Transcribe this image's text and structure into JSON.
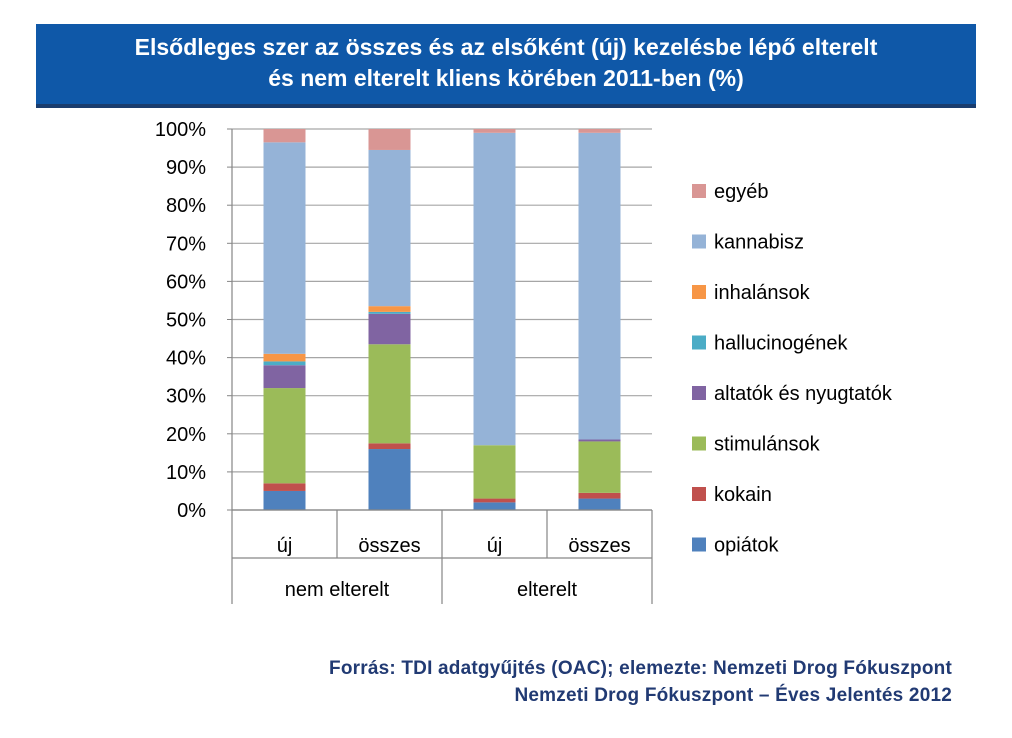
{
  "header": {
    "title_line1": "Elsődleges szer az összes és az elsőként (új) kezelésbe lépő elterelt",
    "title_line2": "és nem elterelt kliens körében 2011-ben (%)"
  },
  "footer": {
    "source_line1": "Forrás: TDI adatgyűjtés  (OAC); elemezte: Nemzeti Drog Fókuszpont",
    "source_line2": "Nemzeti Drog Fókuszpont – Éves Jelentés  2012"
  },
  "colors": {
    "title_band": "#0f58a8",
    "source_text": "#213a73"
  },
  "chart_data": {
    "type": "bar",
    "stacked": true,
    "percent": true,
    "title": "Elsődleges szer az összes és az elsőként (új) kezelésbe lépő elterelt és nem elterelt kliens körében 2011-ben (%)",
    "categories": [
      "új",
      "összes",
      "új",
      "összes"
    ],
    "groups": [
      {
        "label": "nem elterelt",
        "categories": [
          "új",
          "összes"
        ]
      },
      {
        "label": "elterelt",
        "categories": [
          "új",
          "összes"
        ]
      }
    ],
    "yticks": [
      "0%",
      "10%",
      "20%",
      "30%",
      "40%",
      "50%",
      "60%",
      "70%",
      "80%",
      "90%",
      "100%"
    ],
    "ylim": [
      0,
      100
    ],
    "grid": true,
    "legend_position": "right",
    "series": [
      {
        "name": "opiátok",
        "color": "#4f81bd",
        "values": [
          5,
          16,
          2,
          3
        ]
      },
      {
        "name": "kokain",
        "color": "#c0504d",
        "values": [
          2,
          1.5,
          1,
          1.5
        ]
      },
      {
        "name": "stimulánsok",
        "color": "#9bbb59",
        "values": [
          25,
          26,
          14,
          13.5
        ]
      },
      {
        "name": "altatók és nyugtatók",
        "color": "#8064a2",
        "values": [
          6,
          8,
          0,
          0.5
        ]
      },
      {
        "name": "hallucinogének",
        "color": "#4bacc6",
        "values": [
          1,
          0.5,
          0,
          0
        ]
      },
      {
        "name": "inhalánsok",
        "color": "#f79646",
        "values": [
          2,
          1.5,
          0,
          0
        ]
      },
      {
        "name": "kannabisz",
        "color": "#95b3d7",
        "values": [
          55.5,
          41,
          82,
          80.5
        ]
      },
      {
        "name": "egyéb",
        "color": "#d99694",
        "values": [
          3.5,
          5.5,
          1,
          1
        ]
      }
    ]
  }
}
